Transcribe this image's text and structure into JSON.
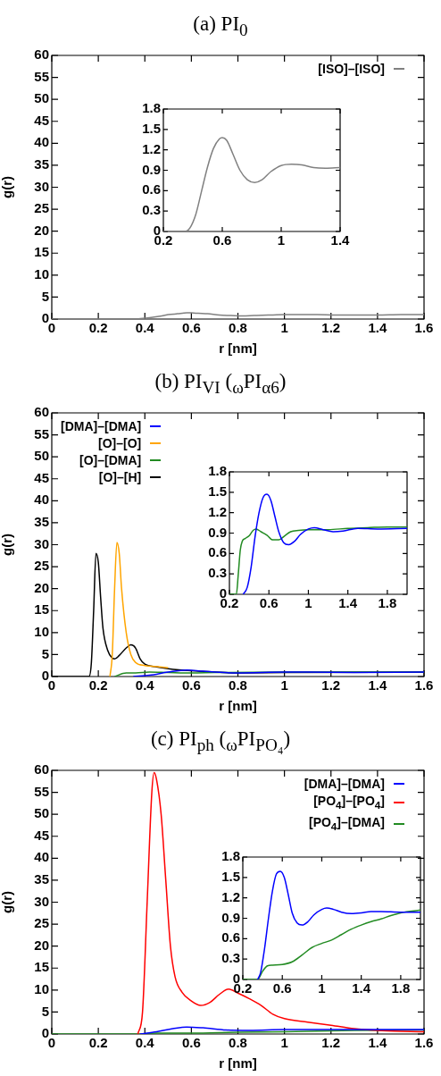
{
  "chart_data": [
    {
      "type": "line",
      "title": "(a) PI$_{0}$",
      "xlabel": "r [nm]",
      "ylabel": "g(r)",
      "xlim": [
        0,
        1.6
      ],
      "xticks": [
        0,
        0.2,
        0.4,
        0.6,
        0.8,
        1,
        1.2,
        1.4,
        1.6
      ],
      "ylim": [
        0,
        60
      ],
      "yticks": [
        0,
        5,
        10,
        15,
        20,
        25,
        30,
        35,
        40,
        45,
        50,
        55,
        60
      ],
      "legend": "top right",
      "marker": "none",
      "line_style": "solid",
      "series": [
        {
          "name": "[ISO]–[ISO]",
          "color": "#808080",
          "x": [
            0,
            0.2,
            0.35,
            0.38,
            0.42,
            0.46,
            0.5,
            0.54,
            0.58,
            0.6,
            0.63,
            0.67,
            0.72,
            0.77,
            0.82,
            0.87,
            0.93,
            1.0,
            1.07,
            1.14,
            1.22,
            1.3,
            1.4,
            1.5,
            1.6
          ],
          "values": [
            0,
            0,
            0,
            0.1,
            0.3,
            0.6,
            1,
            1.2,
            1.4,
            1.4,
            1.3,
            1.2,
            0.9,
            0.8,
            0.7,
            0.8,
            0.9,
            1,
            1,
            1,
            0.9,
            0.9,
            0.9,
            1,
            1
          ]
        }
      ]
    },
    {
      "type": "line",
      "xlim": [
        0.2,
        1.4
      ],
      "xticks": [
        0.2,
        0.6,
        1,
        1.4
      ],
      "ylim": [
        0,
        1.8
      ],
      "yticks": [
        0,
        0.3,
        0.6,
        0.9,
        1.2,
        1.5,
        1.8
      ],
      "marker": "none",
      "line_style": "solid",
      "series": [
        {
          "color": "#808080",
          "x": [
            0.2,
            0.35,
            0.38,
            0.42,
            0.46,
            0.5,
            0.54,
            0.58,
            0.6,
            0.63,
            0.67,
            0.72,
            0.77,
            0.82,
            0.87,
            0.93,
            1.0,
            1.07,
            1.14,
            1.22,
            1.3,
            1.4
          ],
          "values": [
            0,
            0,
            0.05,
            0.25,
            0.6,
            0.95,
            1.22,
            1.36,
            1.38,
            1.34,
            1.15,
            0.9,
            0.76,
            0.72,
            0.76,
            0.88,
            0.97,
            0.99,
            0.98,
            0.94,
            0.93,
            0.94
          ]
        }
      ]
    },
    {
      "type": "line",
      "title": "(b) PI$_{VI}$ ($_{ω}$PI$_{α6}$)",
      "xlabel": "r [nm]",
      "ylabel": "g(r)",
      "xlim": [
        0,
        1.6
      ],
      "xticks": [
        0,
        0.2,
        0.4,
        0.6,
        0.8,
        1,
        1.2,
        1.4,
        1.6
      ],
      "ylim": [
        0,
        60
      ],
      "yticks": [
        0,
        5,
        10,
        15,
        20,
        25,
        30,
        35,
        40,
        45,
        50,
        55,
        60
      ],
      "legend": "top left",
      "marker": "none",
      "line_style": "solid",
      "series": [
        {
          "name": "[DMA]–[DMA]",
          "color": "#0000ff",
          "x": [
            0.35,
            0.42,
            0.5,
            0.58,
            0.65,
            0.8,
            1.0,
            1.1,
            1.3,
            1.6
          ],
          "values": [
            0,
            0.3,
            1,
            1.5,
            1.2,
            0.8,
            1,
            1,
            0.9,
            1
          ]
        },
        {
          "name": "[O]–[O]",
          "color": "#ffa500",
          "x": [
            0.25,
            0.26,
            0.27,
            0.28,
            0.29,
            0.3,
            0.32,
            0.34,
            0.36,
            0.4,
            0.45,
            0.5
          ],
          "values": [
            0,
            5,
            20,
            30.5,
            28,
            20,
            10,
            5,
            3.2,
            2.5,
            2.3,
            2.0
          ]
        },
        {
          "name": "[O]–[DMA]",
          "color": "#228b22",
          "x": [
            0.27,
            0.32,
            0.36,
            0.42,
            0.5,
            0.6,
            0.7,
            1.0,
            1.6
          ],
          "values": [
            0,
            0.8,
            0.8,
            1,
            0.9,
            0.8,
            0.9,
            1,
            1
          ]
        },
        {
          "name": "[O]–[H]",
          "color": "#000000",
          "x": [
            0,
            0.16,
            0.17,
            0.18,
            0.19,
            0.2,
            0.21,
            0.22,
            0.24,
            0.26,
            0.27,
            0.29,
            0.32,
            0.34,
            0.36,
            0.38,
            0.4,
            0.45,
            0.5,
            0.6,
            0.7,
            0.8,
            1.0,
            1.6
          ],
          "values": [
            0,
            0,
            3,
            15,
            28,
            26,
            18,
            11,
            6,
            4.2,
            4,
            4.8,
            6.5,
            7.2,
            6.5,
            4,
            2.8,
            2.2,
            1.8,
            1.3,
            1.0,
            0.8,
            0.9,
            1.0
          ]
        }
      ]
    },
    {
      "type": "line",
      "xlim": [
        0.2,
        2
      ],
      "xticks": [
        0.2,
        0.6,
        1,
        1.4,
        1.8
      ],
      "ylim": [
        0,
        1.8
      ],
      "yticks": [
        0,
        0.3,
        0.6,
        0.9,
        1.2,
        1.5,
        1.8
      ],
      "marker": "none",
      "line_style": "solid",
      "series": [
        {
          "color": "#0000ff",
          "x": [
            0.34,
            0.38,
            0.42,
            0.46,
            0.5,
            0.54,
            0.58,
            0.62,
            0.66,
            0.7,
            0.75,
            0.8,
            0.86,
            0.92,
            1.0,
            1.06,
            1.15,
            1.25,
            1.35,
            1.5,
            1.7,
            2.0
          ],
          "values": [
            0,
            0.1,
            0.4,
            0.85,
            1.2,
            1.42,
            1.47,
            1.38,
            1.15,
            0.92,
            0.76,
            0.73,
            0.78,
            0.88,
            0.96,
            0.98,
            0.95,
            0.92,
            0.93,
            0.97,
            0.96,
            0.97
          ]
        },
        {
          "color": "#228b22",
          "x": [
            0.2,
            0.27,
            0.29,
            0.31,
            0.33,
            0.36,
            0.4,
            0.44,
            0.47,
            0.52,
            0.58,
            0.64,
            0.7,
            0.76,
            0.82,
            0.9,
            1.0,
            1.2,
            1.4,
            1.6,
            1.8,
            2.0
          ],
          "values": [
            0,
            0,
            0.3,
            0.65,
            0.78,
            0.82,
            0.86,
            0.94,
            0.96,
            0.92,
            0.87,
            0.8,
            0.8,
            0.86,
            0.92,
            0.94,
            0.95,
            0.95,
            0.97,
            0.98,
            0.99,
            0.99
          ]
        }
      ]
    },
    {
      "type": "line",
      "title": "(c) PI$_{ph}$ ($_{ω}$PI$_{PO₄}$)",
      "xlabel": "r [nm]",
      "ylabel": "g(r)",
      "xlim": [
        0,
        1.6
      ],
      "xticks": [
        0,
        0.2,
        0.4,
        0.6,
        0.8,
        1,
        1.2,
        1.4,
        1.6
      ],
      "ylim": [
        0,
        60
      ],
      "yticks": [
        0,
        5,
        10,
        15,
        20,
        25,
        30,
        35,
        40,
        45,
        50,
        55,
        60
      ],
      "legend": "top right",
      "marker": "none",
      "line_style": "solid",
      "series": [
        {
          "name": "[DMA]–[DMA]",
          "color": "#0000ff",
          "x": [
            0.38,
            0.45,
            0.52,
            0.58,
            0.65,
            0.75,
            0.85,
            1.0,
            1.6
          ],
          "values": [
            0,
            0.5,
            1.2,
            1.6,
            1.4,
            0.9,
            0.8,
            1.0,
            1.0
          ]
        },
        {
          "name": "[PO$_{4}$]–[PO$_{4}$]",
          "color": "#ff0000",
          "x": [
            0.37,
            0.39,
            0.41,
            0.43,
            0.44,
            0.45,
            0.47,
            0.49,
            0.51,
            0.53,
            0.56,
            0.6,
            0.64,
            0.68,
            0.72,
            0.76,
            0.8,
            0.85,
            0.9,
            0.95,
            1.0,
            1.1,
            1.2,
            1.3,
            1.4,
            1.5,
            1.6
          ],
          "values": [
            0,
            5,
            30,
            55,
            59.5,
            58,
            50,
            35,
            20,
            13,
            9.5,
            7.5,
            6.5,
            7.2,
            9,
            10.2,
            9.3,
            8,
            6.5,
            4.5,
            3.5,
            2.7,
            2.0,
            1.2,
            0.8,
            0.6,
            0.5
          ]
        },
        {
          "name": "[PO$_{4}$]–[DMA]",
          "color": "#228b22",
          "x": [
            0,
            0.38,
            0.45,
            0.6,
            0.8,
            1.0,
            1.3,
            1.6
          ],
          "values": [
            0,
            0,
            0.2,
            0.2,
            0.4,
            0.5,
            0.8,
            0.9
          ]
        }
      ]
    },
    {
      "type": "line",
      "xlim": [
        0.2,
        2
      ],
      "xticks": [
        0.2,
        0.6,
        1,
        1.4,
        1.8
      ],
      "ylim": [
        0,
        1.8
      ],
      "yticks": [
        0,
        0.3,
        0.6,
        0.9,
        1.2,
        1.5,
        1.8
      ],
      "marker": "none",
      "line_style": "solid",
      "series": [
        {
          "color": "#0000ff",
          "x": [
            0.35,
            0.38,
            0.42,
            0.46,
            0.5,
            0.54,
            0.58,
            0.62,
            0.66,
            0.7,
            0.75,
            0.8,
            0.86,
            0.92,
            1.0,
            1.05,
            1.12,
            1.2,
            1.3,
            1.4,
            1.5,
            1.6,
            1.8,
            2.0
          ],
          "values": [
            0,
            0.1,
            0.45,
            0.9,
            1.3,
            1.55,
            1.59,
            1.5,
            1.25,
            0.98,
            0.83,
            0.8,
            0.85,
            0.95,
            1.03,
            1.05,
            1.03,
            0.99,
            0.97,
            0.98,
            1.0,
            1.0,
            0.99,
            0.99
          ]
        },
        {
          "color": "#228b22",
          "x": [
            0.2,
            0.35,
            0.4,
            0.45,
            0.5,
            0.6,
            0.7,
            0.8,
            0.9,
            1.0,
            1.1,
            1.2,
            1.3,
            1.4,
            1.5,
            1.6,
            1.7,
            1.8,
            2.0
          ],
          "values": [
            0,
            0,
            0.12,
            0.2,
            0.21,
            0.22,
            0.26,
            0.36,
            0.47,
            0.53,
            0.58,
            0.66,
            0.74,
            0.8,
            0.85,
            0.89,
            0.94,
            0.98,
            1.02
          ]
        }
      ]
    }
  ]
}
